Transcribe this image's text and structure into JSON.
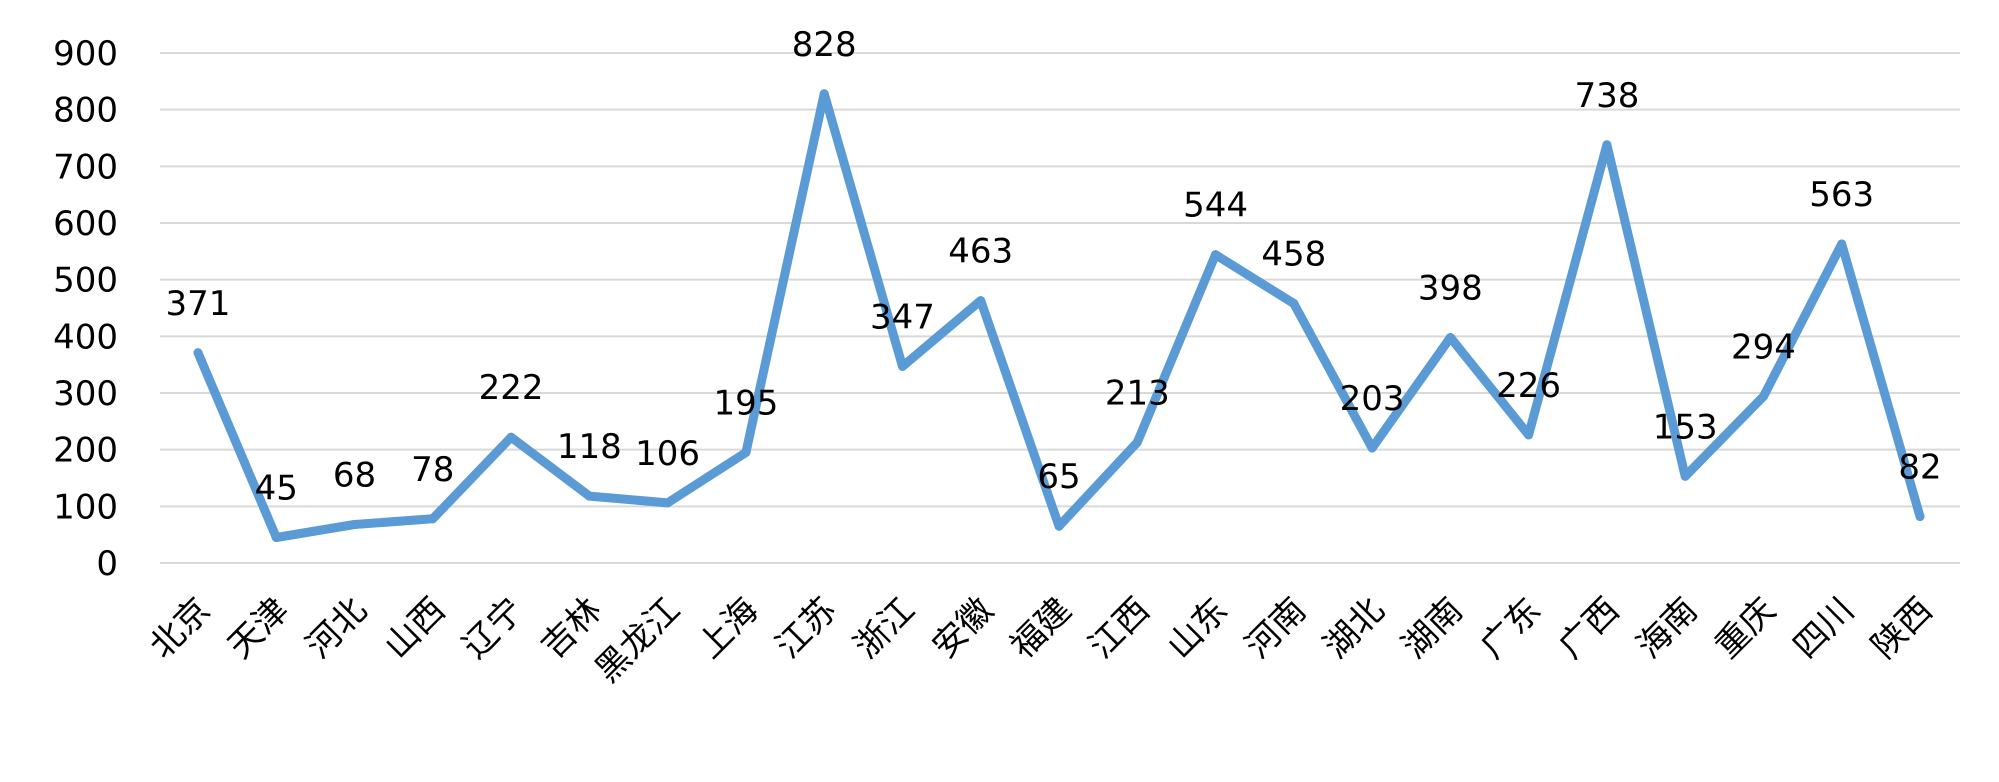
{
  "chart_data": {
    "type": "line",
    "title": "",
    "xlabel": "",
    "ylabel": "",
    "ylim": [
      0,
      900
    ],
    "yticks": [
      0,
      100,
      200,
      300,
      400,
      500,
      600,
      700,
      800,
      900
    ],
    "grid": true,
    "legend": "none",
    "color": "#5b9bd5",
    "categories": [
      "北京",
      "天津",
      "河北",
      "山西",
      "辽宁",
      "吉林",
      "黑龙江",
      "上海",
      "江苏",
      "浙江",
      "安徽",
      "福建",
      "江西",
      "山东",
      "河南",
      "湖北",
      "湖南",
      "广东",
      "广西",
      "海南",
      "重庆",
      "四川",
      "陕西"
    ],
    "series": [
      {
        "values": [
          371,
          45,
          68,
          78,
          222,
          118,
          106,
          195,
          828,
          347,
          463,
          65,
          213,
          544,
          458,
          203,
          398,
          226,
          738,
          153,
          294,
          563,
          82
        ]
      }
    ]
  }
}
